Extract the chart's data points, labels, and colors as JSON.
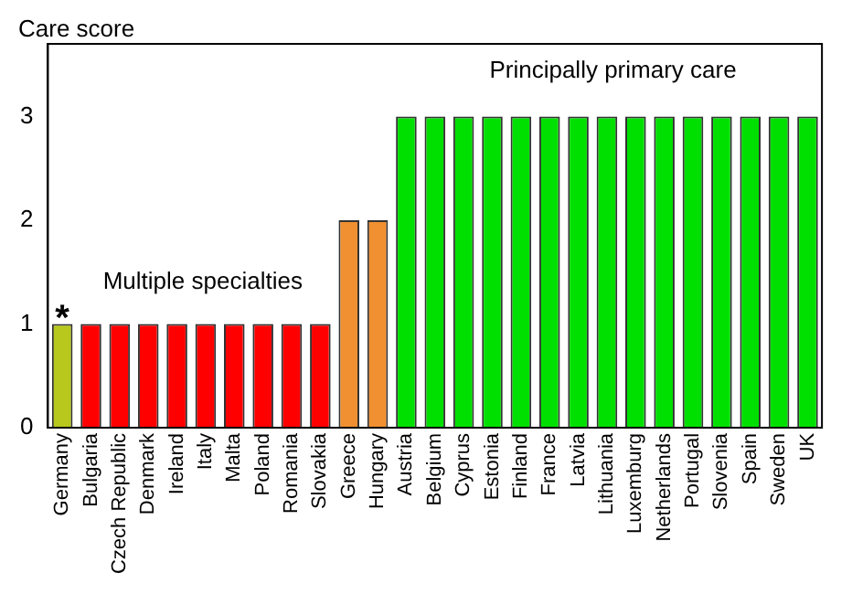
{
  "chart_data": {
    "type": "bar",
    "ylabel": "Care score",
    "categories": [
      "Germany",
      "Bulgaria",
      "Czech Republic",
      "Denmark",
      "Ireland",
      "Italy",
      "Malta",
      "Poland",
      "Romania",
      "Slovakia",
      "Greece",
      "Hungary",
      "Austria",
      "Belgium",
      "Cyprus",
      "Estonia",
      "Finland",
      "France",
      "Latvia",
      "Lithuania",
      "Luxemburg",
      "Netherlands",
      "Portugal",
      "Slovenia",
      "Spain",
      "Sweden",
      "UK"
    ],
    "values": [
      1,
      1,
      1,
      1,
      1,
      1,
      1,
      1,
      1,
      1,
      2,
      2,
      3,
      3,
      3,
      3,
      3,
      3,
      3,
      3,
      3,
      3,
      3,
      3,
      3,
      3,
      3
    ],
    "colors": [
      "#b8c81c",
      "#ff0000",
      "#ff0000",
      "#ff0000",
      "#ff0000",
      "#ff0000",
      "#ff0000",
      "#ff0000",
      "#ff0000",
      "#ff0000",
      "#f09030",
      "#f09030",
      "#00e000",
      "#00e000",
      "#00e000",
      "#00e000",
      "#00e000",
      "#00e000",
      "#00e000",
      "#00e000",
      "#00e000",
      "#00e000",
      "#00e000",
      "#00e000",
      "#00e000",
      "#00e000",
      "#00e000"
    ],
    "ylim": [
      0,
      3.7
    ],
    "yticks": [
      0,
      1,
      2,
      3
    ],
    "grid": false,
    "legend": false,
    "annotations": [
      {
        "text": "*",
        "x": "Germany",
        "y": 1
      },
      "Multiple specialties",
      "Principally primary care"
    ]
  }
}
